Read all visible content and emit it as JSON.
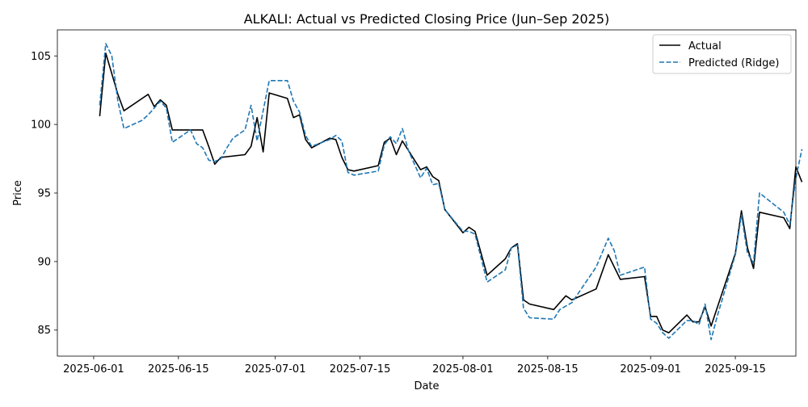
{
  "chart_data": {
    "type": "line",
    "title": "ALKALI: Actual vs Predicted Closing Price (Jun–Sep 2025)",
    "xlabel": "Date",
    "ylabel": "Price",
    "xlim": [
      "2025-05-26",
      "2025-09-25"
    ],
    "ylim": [
      83.1,
      106.9
    ],
    "x_ticks": [
      "2025-06-01",
      "2025-06-15",
      "2025-07-01",
      "2025-07-15",
      "2025-08-01",
      "2025-08-15",
      "2025-09-01",
      "2025-09-15"
    ],
    "y_ticks": [
      85,
      90,
      95,
      100,
      105
    ],
    "grid": false,
    "legend_position": "top-right",
    "series": [
      {
        "name": "Actual",
        "color": "#000000",
        "style": "solid",
        "points": [
          [
            "2025-06-02",
            100.6
          ],
          [
            "2025-06-03",
            105.2
          ],
          [
            "2025-06-05",
            102.2
          ],
          [
            "2025-06-06",
            101.0
          ],
          [
            "2025-06-09",
            101.9
          ],
          [
            "2025-06-10",
            102.2
          ],
          [
            "2025-06-11",
            101.3
          ],
          [
            "2025-06-12",
            101.8
          ],
          [
            "2025-06-13",
            101.4
          ],
          [
            "2025-06-14",
            99.6
          ],
          [
            "2025-06-17",
            99.6
          ],
          [
            "2025-06-19",
            99.6
          ],
          [
            "2025-06-20",
            98.4
          ],
          [
            "2025-06-21",
            97.1
          ],
          [
            "2025-06-22",
            97.6
          ],
          [
            "2025-06-26",
            97.8
          ],
          [
            "2025-06-27",
            98.4
          ],
          [
            "2025-06-28",
            100.5
          ],
          [
            "2025-06-29",
            98.0
          ],
          [
            "2025-06-30",
            102.3
          ],
          [
            "2025-07-03",
            101.9
          ],
          [
            "2025-07-04",
            100.5
          ],
          [
            "2025-07-05",
            100.7
          ],
          [
            "2025-07-06",
            98.9
          ],
          [
            "2025-07-07",
            98.3
          ],
          [
            "2025-07-10",
            99.0
          ],
          [
            "2025-07-11",
            98.9
          ],
          [
            "2025-07-12",
            97.6
          ],
          [
            "2025-07-13",
            96.7
          ],
          [
            "2025-07-14",
            96.6
          ],
          [
            "2025-07-18",
            97.0
          ],
          [
            "2025-07-19",
            98.7
          ],
          [
            "2025-07-20",
            99.0
          ],
          [
            "2025-07-21",
            97.8
          ],
          [
            "2025-07-22",
            98.8
          ],
          [
            "2025-07-25",
            96.7
          ],
          [
            "2025-07-26",
            96.9
          ],
          [
            "2025-07-27",
            96.2
          ],
          [
            "2025-07-28",
            95.9
          ],
          [
            "2025-07-29",
            93.8
          ],
          [
            "2025-08-01",
            92.1
          ],
          [
            "2025-08-02",
            92.5
          ],
          [
            "2025-08-03",
            92.2
          ],
          [
            "2025-08-05",
            89.0
          ],
          [
            "2025-08-08",
            90.2
          ],
          [
            "2025-08-09",
            91.0
          ],
          [
            "2025-08-10",
            91.3
          ],
          [
            "2025-08-11",
            87.2
          ],
          [
            "2025-08-12",
            86.9
          ],
          [
            "2025-08-16",
            86.5
          ],
          [
            "2025-08-18",
            87.5
          ],
          [
            "2025-08-19",
            87.2
          ],
          [
            "2025-08-23",
            88.0
          ],
          [
            "2025-08-25",
            90.5
          ],
          [
            "2025-08-27",
            88.7
          ],
          [
            "2025-08-31",
            88.9
          ],
          [
            "2025-09-01",
            86.0
          ],
          [
            "2025-09-02",
            86.0
          ],
          [
            "2025-09-03",
            85.0
          ],
          [
            "2025-09-04",
            84.8
          ],
          [
            "2025-09-07",
            86.1
          ],
          [
            "2025-09-08",
            85.6
          ],
          [
            "2025-09-09",
            85.6
          ],
          [
            "2025-09-10",
            86.7
          ],
          [
            "2025-09-11",
            85.3
          ],
          [
            "2025-09-15",
            90.6
          ],
          [
            "2025-09-16",
            93.7
          ],
          [
            "2025-09-17",
            91.0
          ],
          [
            "2025-09-18",
            89.5
          ],
          [
            "2025-09-19",
            93.6
          ],
          [
            "2025-09-23",
            93.2
          ],
          [
            "2025-09-24",
            92.4
          ],
          [
            "2025-09-25",
            96.9
          ],
          [
            "2025-09-26",
            95.8
          ]
        ]
      },
      {
        "name": "Predicted (Ridge)",
        "color": "#1f77b4",
        "style": "dashed",
        "points": [
          [
            "2025-06-02",
            101.4
          ],
          [
            "2025-06-03",
            105.9
          ],
          [
            "2025-06-04",
            105.0
          ],
          [
            "2025-06-05",
            101.7
          ],
          [
            "2025-06-06",
            99.7
          ],
          [
            "2025-06-09",
            100.3
          ],
          [
            "2025-06-10",
            100.7
          ],
          [
            "2025-06-11",
            101.2
          ],
          [
            "2025-06-12",
            101.7
          ],
          [
            "2025-06-13",
            101.2
          ],
          [
            "2025-06-14",
            98.7
          ],
          [
            "2025-06-17",
            99.6
          ],
          [
            "2025-06-18",
            98.6
          ],
          [
            "2025-06-19",
            98.3
          ],
          [
            "2025-06-20",
            97.4
          ],
          [
            "2025-06-21",
            97.3
          ],
          [
            "2025-06-22",
            97.5
          ],
          [
            "2025-06-23",
            98.3
          ],
          [
            "2025-06-24",
            99.0
          ],
          [
            "2025-06-26",
            99.6
          ],
          [
            "2025-06-27",
            101.4
          ],
          [
            "2025-06-28",
            98.8
          ],
          [
            "2025-06-30",
            103.2
          ],
          [
            "2025-07-03",
            103.2
          ],
          [
            "2025-07-04",
            101.7
          ],
          [
            "2025-07-05",
            100.9
          ],
          [
            "2025-07-06",
            99.2
          ],
          [
            "2025-07-07",
            98.4
          ],
          [
            "2025-07-10",
            98.9
          ],
          [
            "2025-07-11",
            99.2
          ],
          [
            "2025-07-12",
            98.8
          ],
          [
            "2025-07-13",
            96.5
          ],
          [
            "2025-07-14",
            96.3
          ],
          [
            "2025-07-18",
            96.6
          ],
          [
            "2025-07-19",
            98.5
          ],
          [
            "2025-07-20",
            99.1
          ],
          [
            "2025-07-21",
            98.6
          ],
          [
            "2025-07-22",
            99.7
          ],
          [
            "2025-07-23",
            98.1
          ],
          [
            "2025-07-25",
            96.1
          ],
          [
            "2025-07-26",
            96.8
          ],
          [
            "2025-07-27",
            95.6
          ],
          [
            "2025-07-28",
            95.7
          ],
          [
            "2025-07-29",
            93.8
          ],
          [
            "2025-08-01",
            92.2
          ],
          [
            "2025-08-02",
            92.2
          ],
          [
            "2025-08-03",
            92.0
          ],
          [
            "2025-08-05",
            88.5
          ],
          [
            "2025-08-08",
            89.4
          ],
          [
            "2025-08-09",
            91.0
          ],
          [
            "2025-08-10",
            91.2
          ],
          [
            "2025-08-11",
            86.6
          ],
          [
            "2025-08-12",
            85.9
          ],
          [
            "2025-08-16",
            85.8
          ],
          [
            "2025-08-17",
            86.5
          ],
          [
            "2025-08-19",
            87.0
          ],
          [
            "2025-08-23",
            89.6
          ],
          [
            "2025-08-25",
            91.7
          ],
          [
            "2025-08-26",
            90.8
          ],
          [
            "2025-08-27",
            89.0
          ],
          [
            "2025-08-31",
            89.6
          ],
          [
            "2025-09-01",
            85.8
          ],
          [
            "2025-09-02",
            85.5
          ],
          [
            "2025-09-03",
            84.8
          ],
          [
            "2025-09-04",
            84.4
          ],
          [
            "2025-09-07",
            85.7
          ],
          [
            "2025-09-08",
            85.7
          ],
          [
            "2025-09-09",
            85.4
          ],
          [
            "2025-09-10",
            86.9
          ],
          [
            "2025-09-11",
            84.3
          ],
          [
            "2025-09-12",
            86.0
          ],
          [
            "2025-09-15",
            90.5
          ],
          [
            "2025-09-16",
            93.4
          ],
          [
            "2025-09-17",
            90.6
          ],
          [
            "2025-09-18",
            89.9
          ],
          [
            "2025-09-19",
            95.0
          ],
          [
            "2025-09-23",
            93.6
          ],
          [
            "2025-09-24",
            92.7
          ],
          [
            "2025-09-25",
            96.1
          ],
          [
            "2025-09-26",
            98.2
          ]
        ]
      }
    ]
  }
}
